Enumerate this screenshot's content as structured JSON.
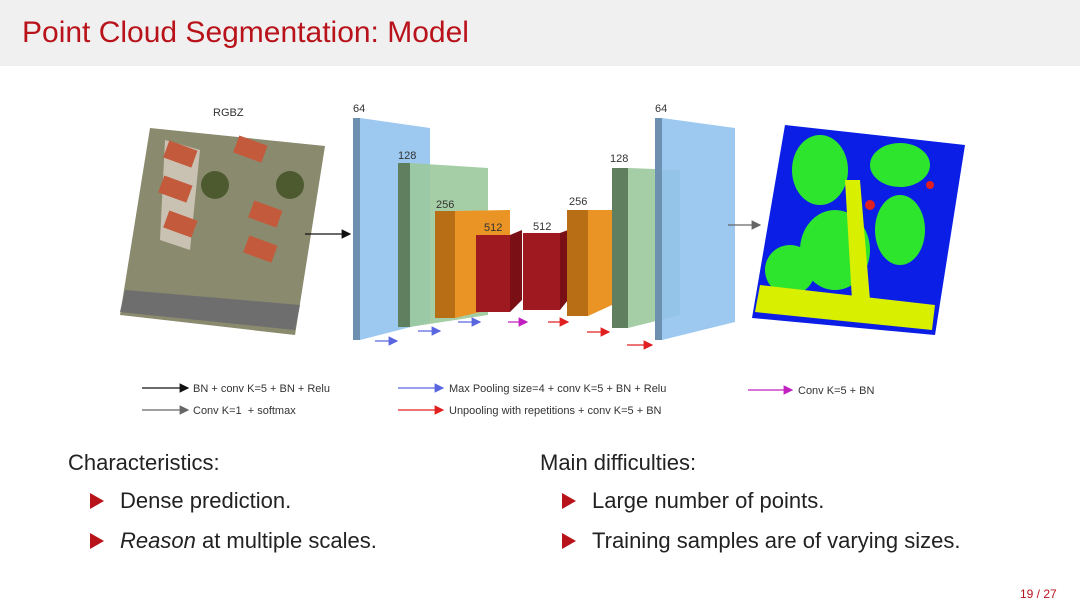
{
  "header": {
    "title": "Point Cloud Segmentation: Model"
  },
  "diagram": {
    "input_label": "RGBZ",
    "layers": [
      64,
      128,
      256,
      512,
      512,
      256,
      128,
      64
    ],
    "legend": [
      "BN + conv K=5 + BN + Relu",
      "Conv K=1  + softmax",
      "Max Pooling size=4 + conv K=5 + BN + Relu",
      "Unpooling with repetitions + conv K=5 + BN",
      "Conv K=5 + BN"
    ]
  },
  "columns": [
    {
      "heading": "Characteristics:",
      "items": [
        {
          "text": "Dense prediction."
        },
        {
          "emphasis": "Reason",
          "text": "at multiple scales."
        }
      ]
    },
    {
      "heading": "Main difficulties:",
      "items": [
        {
          "text": "Large number of points."
        },
        {
          "text": "Training samples are of varying sizes."
        }
      ]
    }
  ],
  "footer": {
    "page": "19 / 27"
  }
}
